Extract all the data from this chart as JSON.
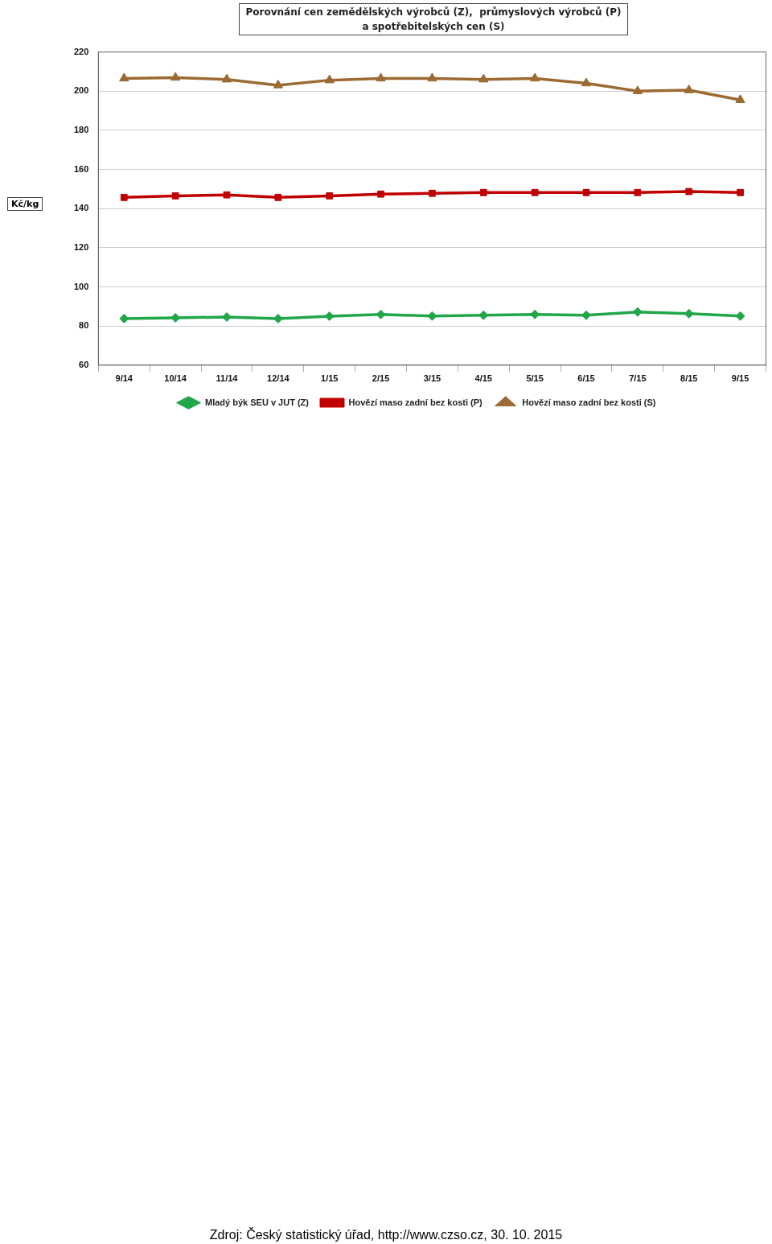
{
  "chart_data": {
    "type": "line",
    "title": "Porovnání cen zemědělských výrobců (Z),  průmyslových výrobců (P)\na spotřebitelských cen (S)",
    "ylabel": "Kč/kg",
    "categories": [
      "9/14",
      "10/14",
      "11/14",
      "12/14",
      "1/15",
      "2/15",
      "3/15",
      "4/15",
      "5/15",
      "6/15",
      "7/15",
      "8/15",
      "9/15"
    ],
    "series": [
      {
        "name": "Mladý býk SEU v JUT (Z)",
        "color": "#22a64a",
        "marker": "diamond",
        "values": [
          83.8,
          84.2,
          84.6,
          83.8,
          85,
          85.9,
          85.1,
          85.5,
          85.9,
          85.5,
          87.2,
          86.3,
          85.1
        ]
      },
      {
        "name": "Hovězí maso zadní bez kosti (P)",
        "color": "#c00000",
        "marker": "square",
        "values": [
          145.7,
          146.5,
          147,
          145.7,
          146.5,
          147.4,
          147.8,
          148.2,
          148.2,
          148.2,
          148.2,
          148.7,
          148.2
        ]
      },
      {
        "name": "Hovězí maso zadní bez kosti (S)",
        "color": "#9c6a32",
        "marker": "triangle",
        "values": [
          206.5,
          206.9,
          206,
          203,
          205.6,
          206.5,
          206.5,
          206,
          206.5,
          204,
          200,
          200.5,
          195.5
        ]
      }
    ],
    "ylim": [
      60,
      220
    ],
    "yticks": [
      60,
      80,
      100,
      120,
      140,
      160,
      180,
      200,
      220
    ],
    "grid": "y",
    "legend": "bottom",
    "line_style": "solid",
    "annotations": [
      "Zdroj: Český statistický úřad, http://www.czso.cz, 30. 10. 2015"
    ]
  }
}
